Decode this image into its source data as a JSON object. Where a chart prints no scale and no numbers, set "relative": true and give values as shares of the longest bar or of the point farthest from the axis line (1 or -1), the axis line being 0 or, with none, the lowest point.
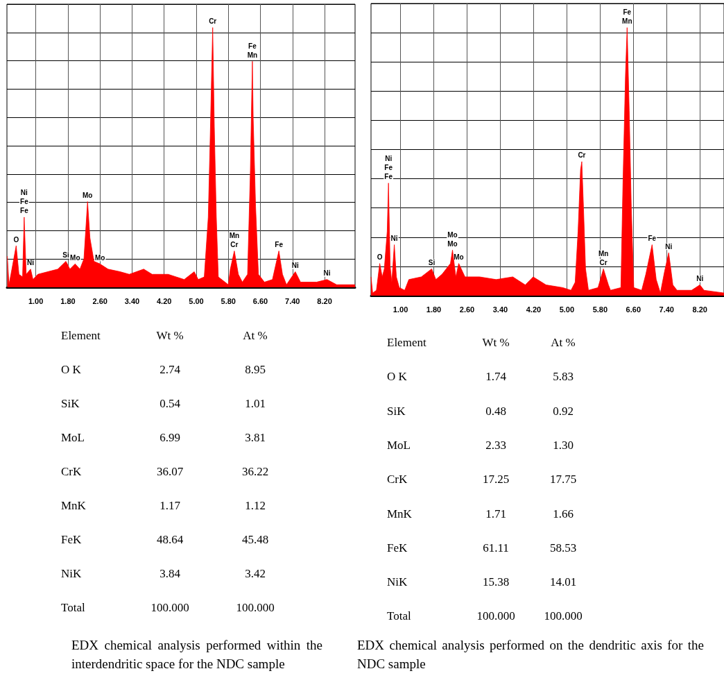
{
  "chart_data": [
    {
      "type": "area",
      "relative": true,
      "color": "#ff0000",
      "grid": true,
      "xlim": [
        0.28,
        8.96
      ],
      "xticks": [
        {
          "value": 1,
          "label": "1.00"
        },
        {
          "value": 1.8,
          "label": "1.80"
        },
        {
          "value": 2.6,
          "label": "2.60"
        },
        {
          "value": 3.4,
          "label": "3.40"
        },
        {
          "value": 4.2,
          "label": "4.20"
        },
        {
          "value": 5,
          "label": "5.00"
        },
        {
          "value": 5.8,
          "label": "5.80"
        },
        {
          "value": 6.6,
          "label": "6.60"
        },
        {
          "value": 7.4,
          "label": "7.40"
        },
        {
          "value": 8.2,
          "label": "8.20"
        }
      ],
      "x": [
        0.29,
        0.33,
        0.38,
        0.51,
        0.58,
        0.67,
        0.71,
        0.76,
        0.87,
        0.93,
        1.05,
        1.3,
        1.55,
        1.75,
        1.85,
        1.98,
        2.1,
        2.2,
        2.29,
        2.35,
        2.45,
        2.6,
        2.8,
        3.1,
        3.33,
        3.69,
        3.9,
        4.3,
        4.7,
        4.95,
        5.05,
        5.2,
        5.3,
        5.35,
        5.41,
        5.45,
        5.5,
        5.55,
        5.8,
        5.85,
        5.95,
        6.05,
        6.15,
        6.28,
        6.35,
        6.4,
        6.42,
        6.48,
        6.55,
        6.7,
        6.9,
        7.06,
        7.15,
        7.25,
        7.47,
        7.6,
        8.0,
        8.26,
        8.5,
        8.96
      ],
      "values": [
        0.12,
        0.01,
        0.05,
        0.16,
        0.05,
        0.04,
        0.27,
        0.05,
        0.07,
        0.03,
        0.05,
        0.06,
        0.07,
        0.1,
        0.07,
        0.09,
        0.07,
        0.11,
        0.33,
        0.19,
        0.1,
        0.09,
        0.07,
        0.06,
        0.05,
        0.07,
        0.05,
        0.05,
        0.03,
        0.06,
        0.03,
        0.04,
        0.27,
        0.59,
        1.0,
        0.62,
        0.27,
        0.04,
        0.01,
        0.07,
        0.14,
        0.05,
        0.02,
        0.05,
        0.45,
        0.87,
        0.65,
        0.31,
        0.05,
        0.02,
        0.03,
        0.14,
        0.05,
        0.01,
        0.06,
        0.02,
        0.02,
        0.03,
        0.01,
        0.01
      ],
      "annotations": [
        {
          "text": "O",
          "x": 0.51,
          "y": 0.16
        },
        {
          "text": "Fe",
          "x": 0.71,
          "y": 0.27
        },
        {
          "text": "Fe",
          "x": 0.71,
          "y": 0.27
        },
        {
          "text": "Ni",
          "x": 0.71,
          "y": 0.27
        },
        {
          "text": "Ni",
          "x": 0.87,
          "y": 0.07
        },
        {
          "text": "Si",
          "x": 1.75,
          "y": 0.1
        },
        {
          "text": "Mo",
          "x": 1.98,
          "y": 0.09
        },
        {
          "text": "Mo",
          "x": 2.29,
          "y": 0.33
        },
        {
          "text": "Mo",
          "x": 2.6,
          "y": 0.09
        },
        {
          "text": "Cr",
          "x": 5.41,
          "y": 1.0
        },
        {
          "text": "Mn",
          "x": 6.4,
          "y": 0.87
        },
        {
          "text": "Fe",
          "x": 6.4,
          "y": 0.87
        },
        {
          "text": "Cr",
          "x": 5.95,
          "y": 0.14
        },
        {
          "text": "Mn",
          "x": 5.95,
          "y": 0.14
        },
        {
          "text": "Fe",
          "x": 7.06,
          "y": 0.14
        },
        {
          "text": "Ni",
          "x": 7.47,
          "y": 0.06
        },
        {
          "text": "Ni",
          "x": 8.26,
          "y": 0.03
        }
      ]
    },
    {
      "type": "area",
      "relative": true,
      "color": "#ff0000",
      "grid": true,
      "xlim": [
        0.29,
        8.78
      ],
      "xticks": [
        {
          "value": 1,
          "label": "1.00"
        },
        {
          "value": 1.8,
          "label": "1.80"
        },
        {
          "value": 2.6,
          "label": "2.60"
        },
        {
          "value": 3.4,
          "label": "3.40"
        },
        {
          "value": 4.2,
          "label": "4.20"
        },
        {
          "value": 5,
          "label": "5.00"
        },
        {
          "value": 5.8,
          "label": "5.80"
        },
        {
          "value": 6.6,
          "label": "6.60"
        },
        {
          "value": 7.4,
          "label": "7.40"
        },
        {
          "value": 8.2,
          "label": "8.20"
        }
      ],
      "x": [
        0.29,
        0.33,
        0.42,
        0.5,
        0.56,
        0.61,
        0.68,
        0.71,
        0.75,
        0.79,
        0.85,
        0.9,
        0.97,
        1.1,
        1.2,
        1.5,
        1.75,
        1.85,
        2.0,
        2.2,
        2.25,
        2.33,
        2.4,
        2.55,
        2.9,
        3.3,
        3.7,
        4.0,
        4.19,
        4.5,
        4.9,
        5.1,
        5.2,
        5.27,
        5.33,
        5.36,
        5.4,
        5.45,
        5.52,
        5.75,
        5.88,
        6.0,
        6.05,
        6.3,
        6.35,
        6.41,
        6.45,
        6.5,
        6.55,
        6.61,
        6.8,
        6.9,
        7.05,
        7.15,
        7.25,
        7.35,
        7.45,
        7.55,
        7.65,
        8.0,
        8.2,
        8.3,
        8.78
      ],
      "values": [
        0.07,
        0.01,
        0.02,
        0.12,
        0.07,
        0.1,
        0.24,
        0.42,
        0.11,
        0.05,
        0.19,
        0.07,
        0.03,
        0.02,
        0.06,
        0.07,
        0.1,
        0.06,
        0.08,
        0.12,
        0.17,
        0.07,
        0.12,
        0.07,
        0.07,
        0.06,
        0.07,
        0.04,
        0.07,
        0.04,
        0.03,
        0.02,
        0.05,
        0.24,
        0.47,
        0.5,
        0.33,
        0.1,
        0.02,
        0.03,
        0.1,
        0.04,
        0.02,
        0.03,
        0.42,
        0.82,
        1.0,
        0.69,
        0.33,
        0.03,
        0.02,
        0.08,
        0.19,
        0.06,
        0.01,
        0.09,
        0.16,
        0.04,
        0.02,
        0.02,
        0.04,
        0.02,
        0.01
      ],
      "annotations": [
        {
          "text": "O",
          "x": 0.5,
          "y": 0.12
        },
        {
          "text": "Fe",
          "x": 0.71,
          "y": 0.42
        },
        {
          "text": "Fe",
          "x": 0.71,
          "y": 0.42
        },
        {
          "text": "Ni",
          "x": 0.71,
          "y": 0.42
        },
        {
          "text": "Ni",
          "x": 0.85,
          "y": 0.19
        },
        {
          "text": "Si",
          "x": 1.75,
          "y": 0.1
        },
        {
          "text": "Mo",
          "x": 2.25,
          "y": 0.17
        },
        {
          "text": "Mo",
          "x": 2.25,
          "y": 0.17
        },
        {
          "text": "Mo",
          "x": 2.4,
          "y": 0.12
        },
        {
          "text": "Cr",
          "x": 5.36,
          "y": 0.5
        },
        {
          "text": "Mn",
          "x": 6.45,
          "y": 1.0
        },
        {
          "text": "Fe",
          "x": 6.45,
          "y": 1.0
        },
        {
          "text": "Cr",
          "x": 5.88,
          "y": 0.1
        },
        {
          "text": "Mn",
          "x": 5.88,
          "y": 0.1
        },
        {
          "text": "Fe",
          "x": 7.05,
          "y": 0.19
        },
        {
          "text": "Ni",
          "x": 7.45,
          "y": 0.16
        },
        {
          "text": "Ni",
          "x": 8.2,
          "y": 0.04
        }
      ]
    },
    {
      "type": "other",
      "title": "EDX chemical analysis performed within the interdendritic space for the NDC sample",
      "categories": [
        "Element",
        "Wt %",
        "At %"
      ],
      "annotations": [
        "O K",
        "2.74",
        "8.95",
        "SiK",
        "0.54",
        "1.01",
        "MoL",
        "6.99",
        "3.81",
        "CrK",
        "36.07",
        "36.22",
        "MnK",
        "1.17",
        "1.12",
        "FeK",
        "48.64",
        "45.48",
        "NiK",
        "3.84",
        "3.42",
        "Total",
        "100.000",
        "100.000"
      ]
    },
    {
      "type": "other",
      "title": "EDX chemical analysis performed on the dendritic axis for the NDC sample",
      "categories": [
        "Element",
        "Wt %",
        "At %"
      ],
      "annotations": [
        "O K",
        "1.74",
        "5.83",
        "SiK",
        "0.48",
        "0.92",
        "MoL",
        "2.33",
        "1.30",
        "CrK",
        "17.25",
        "17.75",
        "MnK",
        "1.71",
        "1.66",
        "FeK",
        "61.11",
        "58.53",
        "NiK",
        "15.38",
        "14.01",
        "Total",
        "100.000",
        "100.000"
      ]
    }
  ]
}
